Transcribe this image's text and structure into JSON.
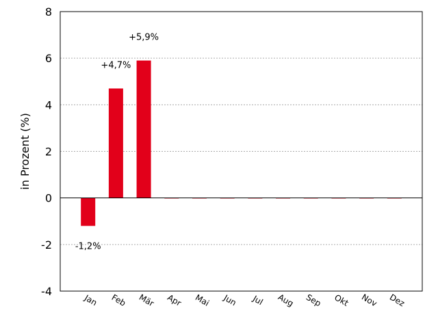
{
  "chart_data": {
    "type": "bar",
    "categories": [
      "Jan",
      "Feb",
      "Mär",
      "Apr",
      "Mai",
      "Jun",
      "Jul",
      "Aug",
      "Sep",
      "Okt",
      "Nov",
      "Dez"
    ],
    "values": [
      -1.2,
      4.7,
      5.9,
      0,
      0,
      0,
      0,
      0,
      0,
      0,
      0,
      0
    ],
    "data_labels": [
      "-1,2%",
      "+4,7%",
      "+5,9%",
      "",
      "",
      "",
      "",
      "",
      "",
      "",
      "",
      ""
    ],
    "ylabel": "in Prozent (%)",
    "ylim": [
      -4,
      8
    ],
    "yticks": [
      -4,
      -2,
      0,
      2,
      4,
      6,
      8
    ],
    "ytick_labels": [
      "-4",
      "-2",
      "0",
      "2",
      "4",
      "6",
      "8"
    ],
    "bar_color": "#e2001a",
    "grid": true
  }
}
